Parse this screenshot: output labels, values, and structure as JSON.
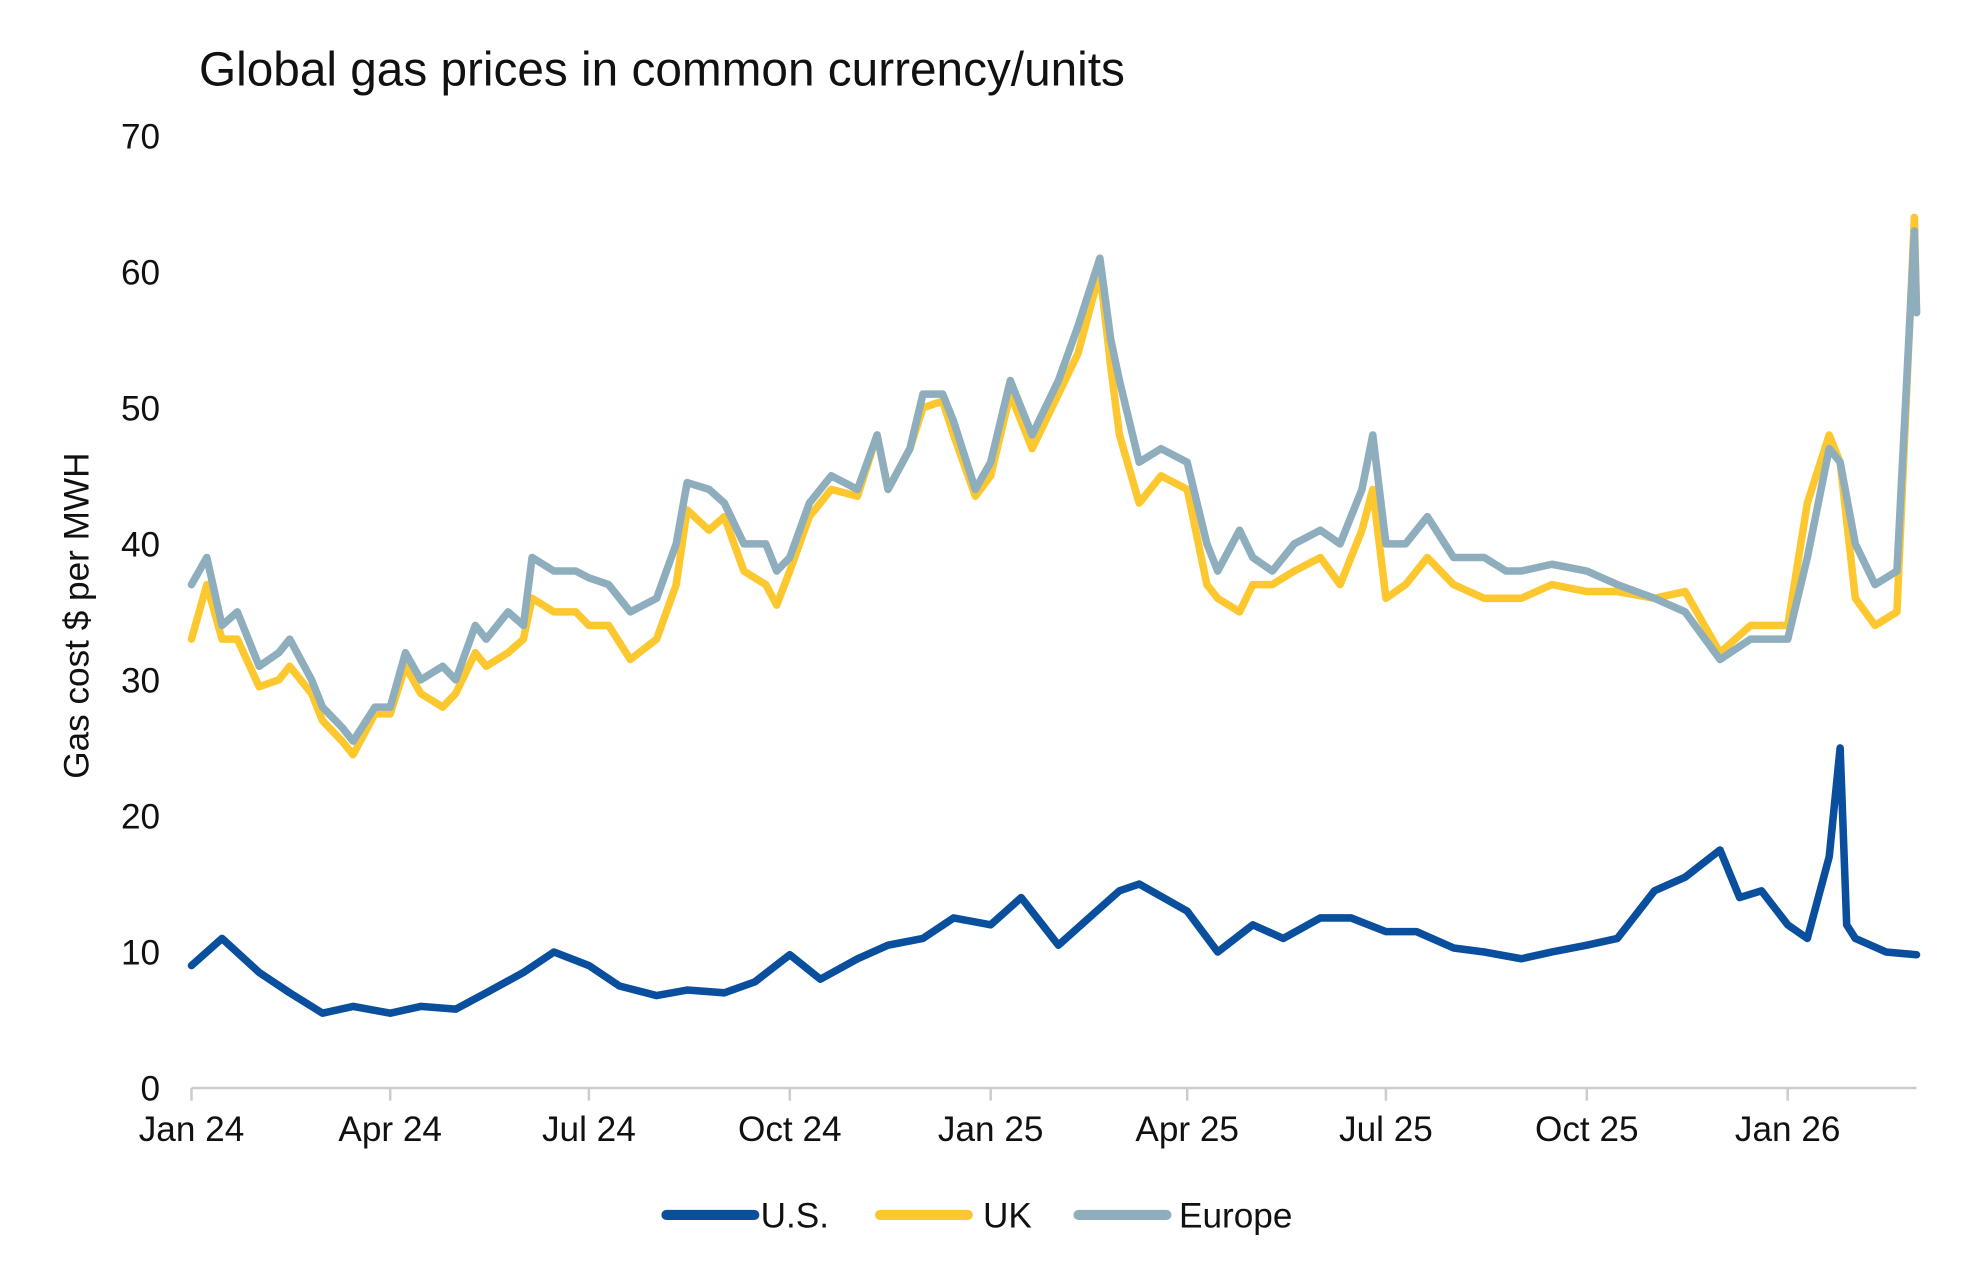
{
  "chart_data": {
    "type": "line",
    "title": "Global gas prices in common currency/units",
    "xlabel": "",
    "ylabel": "Gas cost $ per MWH",
    "ylim": [
      0,
      70
    ],
    "yticks": [
      0,
      10,
      20,
      30,
      40,
      50,
      60,
      70
    ],
    "xlim": [
      "2024-01-01",
      "2026-03-01"
    ],
    "xticks": [
      {
        "date": "2024-01-01",
        "label": "Jan 24"
      },
      {
        "date": "2024-04-01",
        "label": "Apr 24"
      },
      {
        "date": "2024-07-01",
        "label": "Jul 24"
      },
      {
        "date": "2024-10-01",
        "label": "Oct 24"
      },
      {
        "date": "2025-01-01",
        "label": "Jan 25"
      },
      {
        "date": "2025-04-01",
        "label": "Apr 25"
      },
      {
        "date": "2025-07-01",
        "label": "Jul 25"
      },
      {
        "date": "2025-10-01",
        "label": "Oct 25"
      },
      {
        "date": "2026-01-01",
        "label": "Jan 26"
      }
    ],
    "grid": false,
    "legend": "bottom",
    "series": [
      {
        "name": "U.S.",
        "color": "#0a4f9e",
        "points": [
          [
            "2024-01-01",
            9
          ],
          [
            "2024-01-15",
            11
          ],
          [
            "2024-02-01",
            8.5
          ],
          [
            "2024-02-15",
            7
          ],
          [
            "2024-03-01",
            5.5
          ],
          [
            "2024-03-15",
            6
          ],
          [
            "2024-04-01",
            5.5
          ],
          [
            "2024-04-15",
            6
          ],
          [
            "2024-05-01",
            5.8
          ],
          [
            "2024-05-15",
            7
          ],
          [
            "2024-06-01",
            8.5
          ],
          [
            "2024-06-15",
            10
          ],
          [
            "2024-07-01",
            9
          ],
          [
            "2024-07-15",
            7.5
          ],
          [
            "2024-08-01",
            6.8
          ],
          [
            "2024-08-15",
            7.2
          ],
          [
            "2024-09-01",
            7
          ],
          [
            "2024-09-15",
            7.8
          ],
          [
            "2024-10-01",
            9.8
          ],
          [
            "2024-10-15",
            8
          ],
          [
            "2024-11-01",
            9.5
          ],
          [
            "2024-11-15",
            10.5
          ],
          [
            "2024-12-01",
            11
          ],
          [
            "2024-12-15",
            12.5
          ],
          [
            "2025-01-01",
            12
          ],
          [
            "2025-01-15",
            14
          ],
          [
            "2025-02-01",
            10.5
          ],
          [
            "2025-02-15",
            12.5
          ],
          [
            "2025-03-01",
            14.5
          ],
          [
            "2025-03-10",
            15
          ],
          [
            "2025-04-01",
            13
          ],
          [
            "2025-04-15",
            10
          ],
          [
            "2025-05-01",
            12
          ],
          [
            "2025-05-15",
            11
          ],
          [
            "2025-06-01",
            12.5
          ],
          [
            "2025-06-15",
            12.5
          ],
          [
            "2025-07-01",
            11.5
          ],
          [
            "2025-07-15",
            11.5
          ],
          [
            "2025-08-01",
            10.3
          ],
          [
            "2025-08-15",
            10
          ],
          [
            "2025-09-01",
            9.5
          ],
          [
            "2025-09-15",
            10
          ],
          [
            "2025-10-01",
            10.5
          ],
          [
            "2025-10-15",
            11
          ],
          [
            "2025-11-01",
            14.5
          ],
          [
            "2025-11-15",
            15.5
          ],
          [
            "2025-12-01",
            17.5
          ],
          [
            "2025-12-10",
            14
          ],
          [
            "2025-12-20",
            14.5
          ],
          [
            "2026-01-01",
            12
          ],
          [
            "2026-01-10",
            11
          ],
          [
            "2026-01-20",
            17
          ],
          [
            "2026-01-25",
            25
          ],
          [
            "2026-01-28",
            12
          ],
          [
            "2026-02-01",
            11
          ],
          [
            "2026-02-15",
            10
          ],
          [
            "2026-03-01",
            9.8
          ]
        ]
      },
      {
        "name": "UK",
        "color": "#fdc82f",
        "points": [
          [
            "2024-01-01",
            33
          ],
          [
            "2024-01-08",
            37
          ],
          [
            "2024-01-15",
            33
          ],
          [
            "2024-01-22",
            33
          ],
          [
            "2024-02-01",
            29.5
          ],
          [
            "2024-02-10",
            30
          ],
          [
            "2024-02-15",
            31
          ],
          [
            "2024-02-25",
            29
          ],
          [
            "2024-03-01",
            27
          ],
          [
            "2024-03-10",
            25.5
          ],
          [
            "2024-03-15",
            24.5
          ],
          [
            "2024-03-25",
            27.5
          ],
          [
            "2024-04-01",
            27.5
          ],
          [
            "2024-04-08",
            31
          ],
          [
            "2024-04-15",
            29
          ],
          [
            "2024-04-25",
            28
          ],
          [
            "2024-05-01",
            29
          ],
          [
            "2024-05-10",
            32
          ],
          [
            "2024-05-15",
            31
          ],
          [
            "2024-05-25",
            32
          ],
          [
            "2024-06-01",
            33
          ],
          [
            "2024-06-05",
            36
          ],
          [
            "2024-06-15",
            35
          ],
          [
            "2024-06-25",
            35
          ],
          [
            "2024-07-01",
            34
          ],
          [
            "2024-07-10",
            34
          ],
          [
            "2024-07-20",
            31.5
          ],
          [
            "2024-08-01",
            33
          ],
          [
            "2024-08-10",
            37
          ],
          [
            "2024-08-15",
            42.5
          ],
          [
            "2024-08-25",
            41
          ],
          [
            "2024-09-01",
            42
          ],
          [
            "2024-09-10",
            38
          ],
          [
            "2024-09-20",
            37
          ],
          [
            "2024-09-25",
            35.5
          ],
          [
            "2024-10-01",
            38
          ],
          [
            "2024-10-10",
            42
          ],
          [
            "2024-10-20",
            44
          ],
          [
            "2024-11-01",
            43.5
          ],
          [
            "2024-11-10",
            48
          ],
          [
            "2024-11-15",
            44
          ],
          [
            "2024-11-25",
            47
          ],
          [
            "2024-12-01",
            50
          ],
          [
            "2024-12-10",
            50.5
          ],
          [
            "2024-12-15",
            48
          ],
          [
            "2024-12-25",
            43.5
          ],
          [
            "2025-01-01",
            45
          ],
          [
            "2025-01-10",
            51
          ],
          [
            "2025-01-20",
            47
          ],
          [
            "2025-02-01",
            51
          ],
          [
            "2025-02-10",
            54
          ],
          [
            "2025-02-20",
            60
          ],
          [
            "2025-02-25",
            53
          ],
          [
            "2025-03-01",
            48
          ],
          [
            "2025-03-10",
            43
          ],
          [
            "2025-03-20",
            45
          ],
          [
            "2025-04-01",
            44
          ],
          [
            "2025-04-10",
            37
          ],
          [
            "2025-04-15",
            36
          ],
          [
            "2025-04-25",
            35
          ],
          [
            "2025-05-01",
            37
          ],
          [
            "2025-05-10",
            37
          ],
          [
            "2025-05-20",
            38
          ],
          [
            "2025-06-01",
            39
          ],
          [
            "2025-06-10",
            37
          ],
          [
            "2025-06-20",
            41
          ],
          [
            "2025-06-25",
            44
          ],
          [
            "2025-07-01",
            36
          ],
          [
            "2025-07-10",
            37
          ],
          [
            "2025-07-20",
            39
          ],
          [
            "2025-08-01",
            37
          ],
          [
            "2025-08-15",
            36
          ],
          [
            "2025-08-25",
            36
          ],
          [
            "2025-09-01",
            36
          ],
          [
            "2025-09-15",
            37
          ],
          [
            "2025-10-01",
            36.5
          ],
          [
            "2025-10-15",
            36.5
          ],
          [
            "2025-11-01",
            36
          ],
          [
            "2025-11-15",
            36.5
          ],
          [
            "2025-12-01",
            32
          ],
          [
            "2025-12-15",
            34
          ],
          [
            "2026-01-01",
            34
          ],
          [
            "2026-01-10",
            43
          ],
          [
            "2026-01-20",
            48
          ],
          [
            "2026-01-25",
            46
          ],
          [
            "2026-02-01",
            36
          ],
          [
            "2026-02-10",
            34
          ],
          [
            "2026-02-20",
            35
          ],
          [
            "2026-02-28",
            64
          ],
          [
            "2026-03-01",
            57
          ]
        ]
      },
      {
        "name": "Europe",
        "color": "#8eaebd",
        "points": [
          [
            "2024-01-01",
            37
          ],
          [
            "2024-01-08",
            39
          ],
          [
            "2024-01-15",
            34
          ],
          [
            "2024-01-22",
            35
          ],
          [
            "2024-02-01",
            31
          ],
          [
            "2024-02-10",
            32
          ],
          [
            "2024-02-15",
            33
          ],
          [
            "2024-02-25",
            30
          ],
          [
            "2024-03-01",
            28
          ],
          [
            "2024-03-10",
            26.5
          ],
          [
            "2024-03-15",
            25.5
          ],
          [
            "2024-03-25",
            28
          ],
          [
            "2024-04-01",
            28
          ],
          [
            "2024-04-08",
            32
          ],
          [
            "2024-04-15",
            30
          ],
          [
            "2024-04-25",
            31
          ],
          [
            "2024-05-01",
            30
          ],
          [
            "2024-05-10",
            34
          ],
          [
            "2024-05-15",
            33
          ],
          [
            "2024-05-25",
            35
          ],
          [
            "2024-06-01",
            34
          ],
          [
            "2024-06-05",
            39
          ],
          [
            "2024-06-15",
            38
          ],
          [
            "2024-06-25",
            38
          ],
          [
            "2024-07-01",
            37.5
          ],
          [
            "2024-07-10",
            37
          ],
          [
            "2024-07-20",
            35
          ],
          [
            "2024-08-01",
            36
          ],
          [
            "2024-08-10",
            40
          ],
          [
            "2024-08-15",
            44.5
          ],
          [
            "2024-08-25",
            44
          ],
          [
            "2024-09-01",
            43
          ],
          [
            "2024-09-10",
            40
          ],
          [
            "2024-09-20",
            40
          ],
          [
            "2024-09-25",
            38
          ],
          [
            "2024-10-01",
            39
          ],
          [
            "2024-10-10",
            43
          ],
          [
            "2024-10-20",
            45
          ],
          [
            "2024-11-01",
            44
          ],
          [
            "2024-11-10",
            48
          ],
          [
            "2024-11-15",
            44
          ],
          [
            "2024-11-25",
            47
          ],
          [
            "2024-12-01",
            51
          ],
          [
            "2024-12-10",
            51
          ],
          [
            "2024-12-15",
            49
          ],
          [
            "2024-12-25",
            44
          ],
          [
            "2025-01-01",
            46
          ],
          [
            "2025-01-10",
            52
          ],
          [
            "2025-01-20",
            48
          ],
          [
            "2025-02-01",
            52
          ],
          [
            "2025-02-10",
            56
          ],
          [
            "2025-02-20",
            61
          ],
          [
            "2025-02-25",
            55
          ],
          [
            "2025-03-01",
            52
          ],
          [
            "2025-03-10",
            46
          ],
          [
            "2025-03-20",
            47
          ],
          [
            "2025-04-01",
            46
          ],
          [
            "2025-04-10",
            40
          ],
          [
            "2025-04-15",
            38
          ],
          [
            "2025-04-25",
            41
          ],
          [
            "2025-05-01",
            39
          ],
          [
            "2025-05-10",
            38
          ],
          [
            "2025-05-20",
            40
          ],
          [
            "2025-06-01",
            41
          ],
          [
            "2025-06-10",
            40
          ],
          [
            "2025-06-20",
            44
          ],
          [
            "2025-06-25",
            48
          ],
          [
            "2025-07-01",
            40
          ],
          [
            "2025-07-10",
            40
          ],
          [
            "2025-07-20",
            42
          ],
          [
            "2025-08-01",
            39
          ],
          [
            "2025-08-15",
            39
          ],
          [
            "2025-08-25",
            38
          ],
          [
            "2025-09-01",
            38
          ],
          [
            "2025-09-15",
            38.5
          ],
          [
            "2025-10-01",
            38
          ],
          [
            "2025-10-15",
            37
          ],
          [
            "2025-11-01",
            36
          ],
          [
            "2025-11-15",
            35
          ],
          [
            "2025-12-01",
            31.5
          ],
          [
            "2025-12-15",
            33
          ],
          [
            "2026-01-01",
            33
          ],
          [
            "2026-01-10",
            39
          ],
          [
            "2026-01-20",
            47
          ],
          [
            "2026-01-25",
            46
          ],
          [
            "2026-02-01",
            40
          ],
          [
            "2026-02-10",
            37
          ],
          [
            "2026-02-20",
            38
          ],
          [
            "2026-02-28",
            63
          ],
          [
            "2026-03-01",
            57
          ]
        ]
      }
    ]
  }
}
